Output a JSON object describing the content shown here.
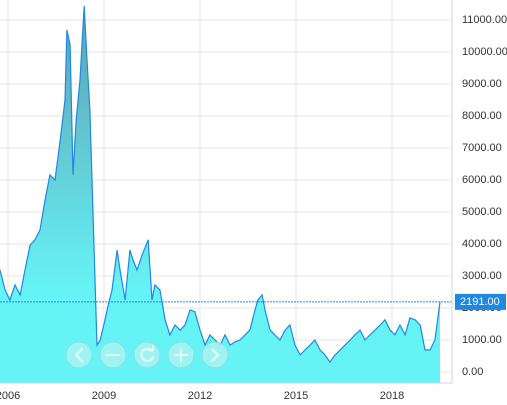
{
  "chart_data": {
    "type": "area",
    "x": [
      2005.75,
      2005.91,
      2006.06,
      2006.22,
      2006.38,
      2006.53,
      2006.69,
      2006.84,
      2007.0,
      2007.16,
      2007.31,
      2007.47,
      2007.63,
      2007.78,
      2007.84,
      2007.94,
      2008.03,
      2008.13,
      2008.25,
      2008.38,
      2008.47,
      2008.56,
      2008.72,
      2008.78,
      2008.88,
      2009.03,
      2009.13,
      2009.25,
      2009.41,
      2009.5,
      2009.66,
      2009.81,
      2009.91,
      2010.03,
      2010.19,
      2010.38,
      2010.5,
      2010.59,
      2010.75,
      2010.91,
      2011.06,
      2011.22,
      2011.38,
      2011.53,
      2011.69,
      2011.84,
      2012.0,
      2012.16,
      2012.31,
      2012.47,
      2012.63,
      2012.78,
      2012.94,
      2013.09,
      2013.25,
      2013.41,
      2013.56,
      2013.72,
      2013.81,
      2013.94,
      2014.03,
      2014.19,
      2014.34,
      2014.5,
      2014.66,
      2014.81,
      2014.97,
      2015.13,
      2015.28,
      2015.44,
      2015.59,
      2015.75,
      2015.91,
      2016.06,
      2016.22,
      2016.38,
      2016.53,
      2016.69,
      2016.84,
      2017.0,
      2017.16,
      2017.31,
      2017.47,
      2017.63,
      2017.78,
      2017.94,
      2018.09,
      2018.25,
      2018.41,
      2018.56,
      2018.72,
      2018.88,
      2019.03,
      2019.19,
      2019.34,
      2019.5
    ],
    "values": [
      3190,
      2560,
      2250,
      2720,
      2410,
      3190,
      3970,
      4130,
      4440,
      5380,
      6160,
      6000,
      7250,
      8500,
      10690,
      10220,
      6160,
      7880,
      9130,
      11440,
      9750,
      8190,
      2880,
      840,
      1000,
      1630,
      2090,
      2560,
      3810,
      3190,
      2250,
      3810,
      3500,
      3190,
      3660,
      4130,
      2250,
      2720,
      2560,
      1630,
      1160,
      1470,
      1310,
      1470,
      1940,
      1880,
      1310,
      840,
      1160,
      1000,
      840,
      1160,
      840,
      940,
      1000,
      1160,
      1310,
      1940,
      2250,
      2410,
      1940,
      1310,
      1160,
      1000,
      1310,
      1470,
      840,
      530,
      690,
      840,
      1000,
      690,
      530,
      310,
      530,
      690,
      840,
      1000,
      1160,
      1310,
      1000,
      1160,
      1310,
      1470,
      1630,
      1310,
      1160,
      1470,
      1160,
      1690,
      1630,
      1470,
      690,
      690,
      1000,
      2191
    ],
    "color": "#1e88e5",
    "fill_top_color": "#5f9fb0",
    "fill_bottom_color": "#66f3f6",
    "xlim": [
      2005.75,
      2019.875
    ],
    "xticks": [
      2006,
      2009,
      2012,
      2015,
      2018
    ],
    "ylim": [
      -344,
      11625
    ],
    "yticks": [
      {
        "value": 0,
        "label": "0.00"
      },
      {
        "value": 1000,
        "label": "1000.00"
      },
      {
        "value": 2000,
        "label": "2000.00"
      },
      {
        "value": 3000,
        "label": "3000.00"
      },
      {
        "value": 4000,
        "label": "4000.00"
      },
      {
        "value": 5000,
        "label": "5000.00"
      },
      {
        "value": 6000,
        "label": "6000.00"
      },
      {
        "value": 7000,
        "label": "7000.00"
      },
      {
        "value": 8000,
        "label": "8000.00"
      },
      {
        "value": 9000,
        "label": "9000.00"
      },
      {
        "value": 10000,
        "label": "10000.00"
      },
      {
        "value": 11000,
        "label": "11000.00"
      }
    ],
    "grid": true,
    "reference_line": {
      "value": 2191,
      "label": "2191.00",
      "color": "#1e88e5"
    }
  }
}
